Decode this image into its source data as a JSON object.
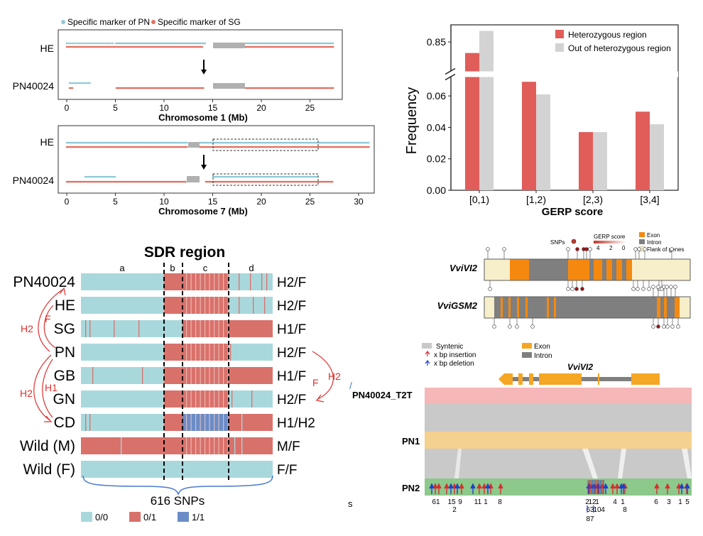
{
  "panelA": {
    "legend": [
      "Specific marker of PN",
      "Specific marker of SG"
    ],
    "colors": {
      "pn": "#8fc9d6",
      "sg": "#e1705f",
      "gap": "#b0b0b0"
    },
    "chr1": {
      "rows": [
        "HE",
        "PN40024"
      ],
      "ticks": [
        "0",
        "5",
        "10",
        "15",
        "20",
        "25"
      ],
      "xlabel": "Chromosome 1 (Mb)"
    },
    "chr7": {
      "rows": [
        "HE",
        "PN40024"
      ],
      "ticks": [
        "0",
        "5",
        "10",
        "15",
        "20",
        "25",
        "30"
      ],
      "xlabel": "Chromosome 7 (Mb)"
    }
  },
  "chart_data": {
    "type": "bar",
    "categories": [
      "[0,1)",
      "[1,2)",
      "[2,3)",
      "[3,4]"
    ],
    "series": [
      {
        "name": "Heterozygous region",
        "values": [
          0.83,
          0.069,
          0.037,
          0.05
        ],
        "color": "#e05d5a"
      },
      {
        "name": "Out of heterozygous region",
        "values": [
          0.87,
          0.061,
          0.037,
          0.042
        ],
        "color": "#d3d3d3"
      }
    ],
    "xlabel": "GERP score",
    "ylabel": "Frequency",
    "yticks": [
      "0.00",
      "0.02",
      "0.04",
      "0.06",
      "0.85"
    ],
    "axis_break": true,
    "legend_position": "top-right"
  },
  "sdr": {
    "title": "SDR region",
    "segments": [
      "a",
      "b",
      "c",
      "d"
    ],
    "rows": [
      {
        "name": "PN40024",
        "geno": "H2/F"
      },
      {
        "name": "HE",
        "geno": "H2/F"
      },
      {
        "name": "SG",
        "geno": "H1/F"
      },
      {
        "name": "PN",
        "geno": "H2/F"
      },
      {
        "name": "GB",
        "geno": "H1/F"
      },
      {
        "name": "GN",
        "geno": "H2/F"
      },
      {
        "name": "CD",
        "geno": "H1/H2"
      },
      {
        "name": "Wild (M)",
        "geno": "M/F"
      },
      {
        "name": "Wild (F)",
        "geno": "F/F"
      }
    ],
    "arrow_labels": {
      "left_f": "F",
      "left_h2_top": "H2",
      "left_h2_bottom": "H2",
      "left_h1": "H1",
      "right_h2": "H2",
      "right_f": "F"
    },
    "snp_count": "616 SNPs",
    "legend": [
      {
        "label": "0/0",
        "color": "#a9d8dc"
      },
      {
        "label": "0/1",
        "color": "#d9716b"
      },
      {
        "label": "1/1",
        "color": "#6b8cc7"
      }
    ]
  },
  "genes": {
    "legend": {
      "snps": "SNPs",
      "gerp": "GERP score",
      "gerp_ticks": [
        "4",
        "2",
        "0"
      ],
      "exon": "Exon",
      "intron": "Intron",
      "flank": "Flank of genes"
    },
    "names": [
      "VviVI2",
      "VviGSM2"
    ],
    "colors": {
      "exon": "#f5890f",
      "intron": "#7f7f7f",
      "flank": "#f7efc9"
    }
  },
  "synteny": {
    "legend": {
      "syntenic": "Syntenic",
      "insertion": "x bp insertion",
      "deletion": "x bp deletion",
      "exon": "Exon",
      "intron": "Intron"
    },
    "gene": "VviVI2",
    "tracks": [
      "PN40024_T2T",
      "PN1",
      "PN2"
    ],
    "colors": {
      "t2t": "#f5b7b7",
      "pn1": "#f5d18f",
      "pn2": "#8cc98a",
      "syn": "#c9c9c9"
    },
    "top_labels": [
      "61",
      "15",
      "9",
      "11",
      "1",
      "8",
      "2",
      "12",
      "1",
      "4",
      "1",
      "6",
      "3",
      "1",
      "5"
    ],
    "bottom_labels": [
      "2",
      "63",
      "10",
      "4",
      "8"
    ],
    "bottom_labels2": [
      "87"
    ],
    "stray": "s"
  }
}
